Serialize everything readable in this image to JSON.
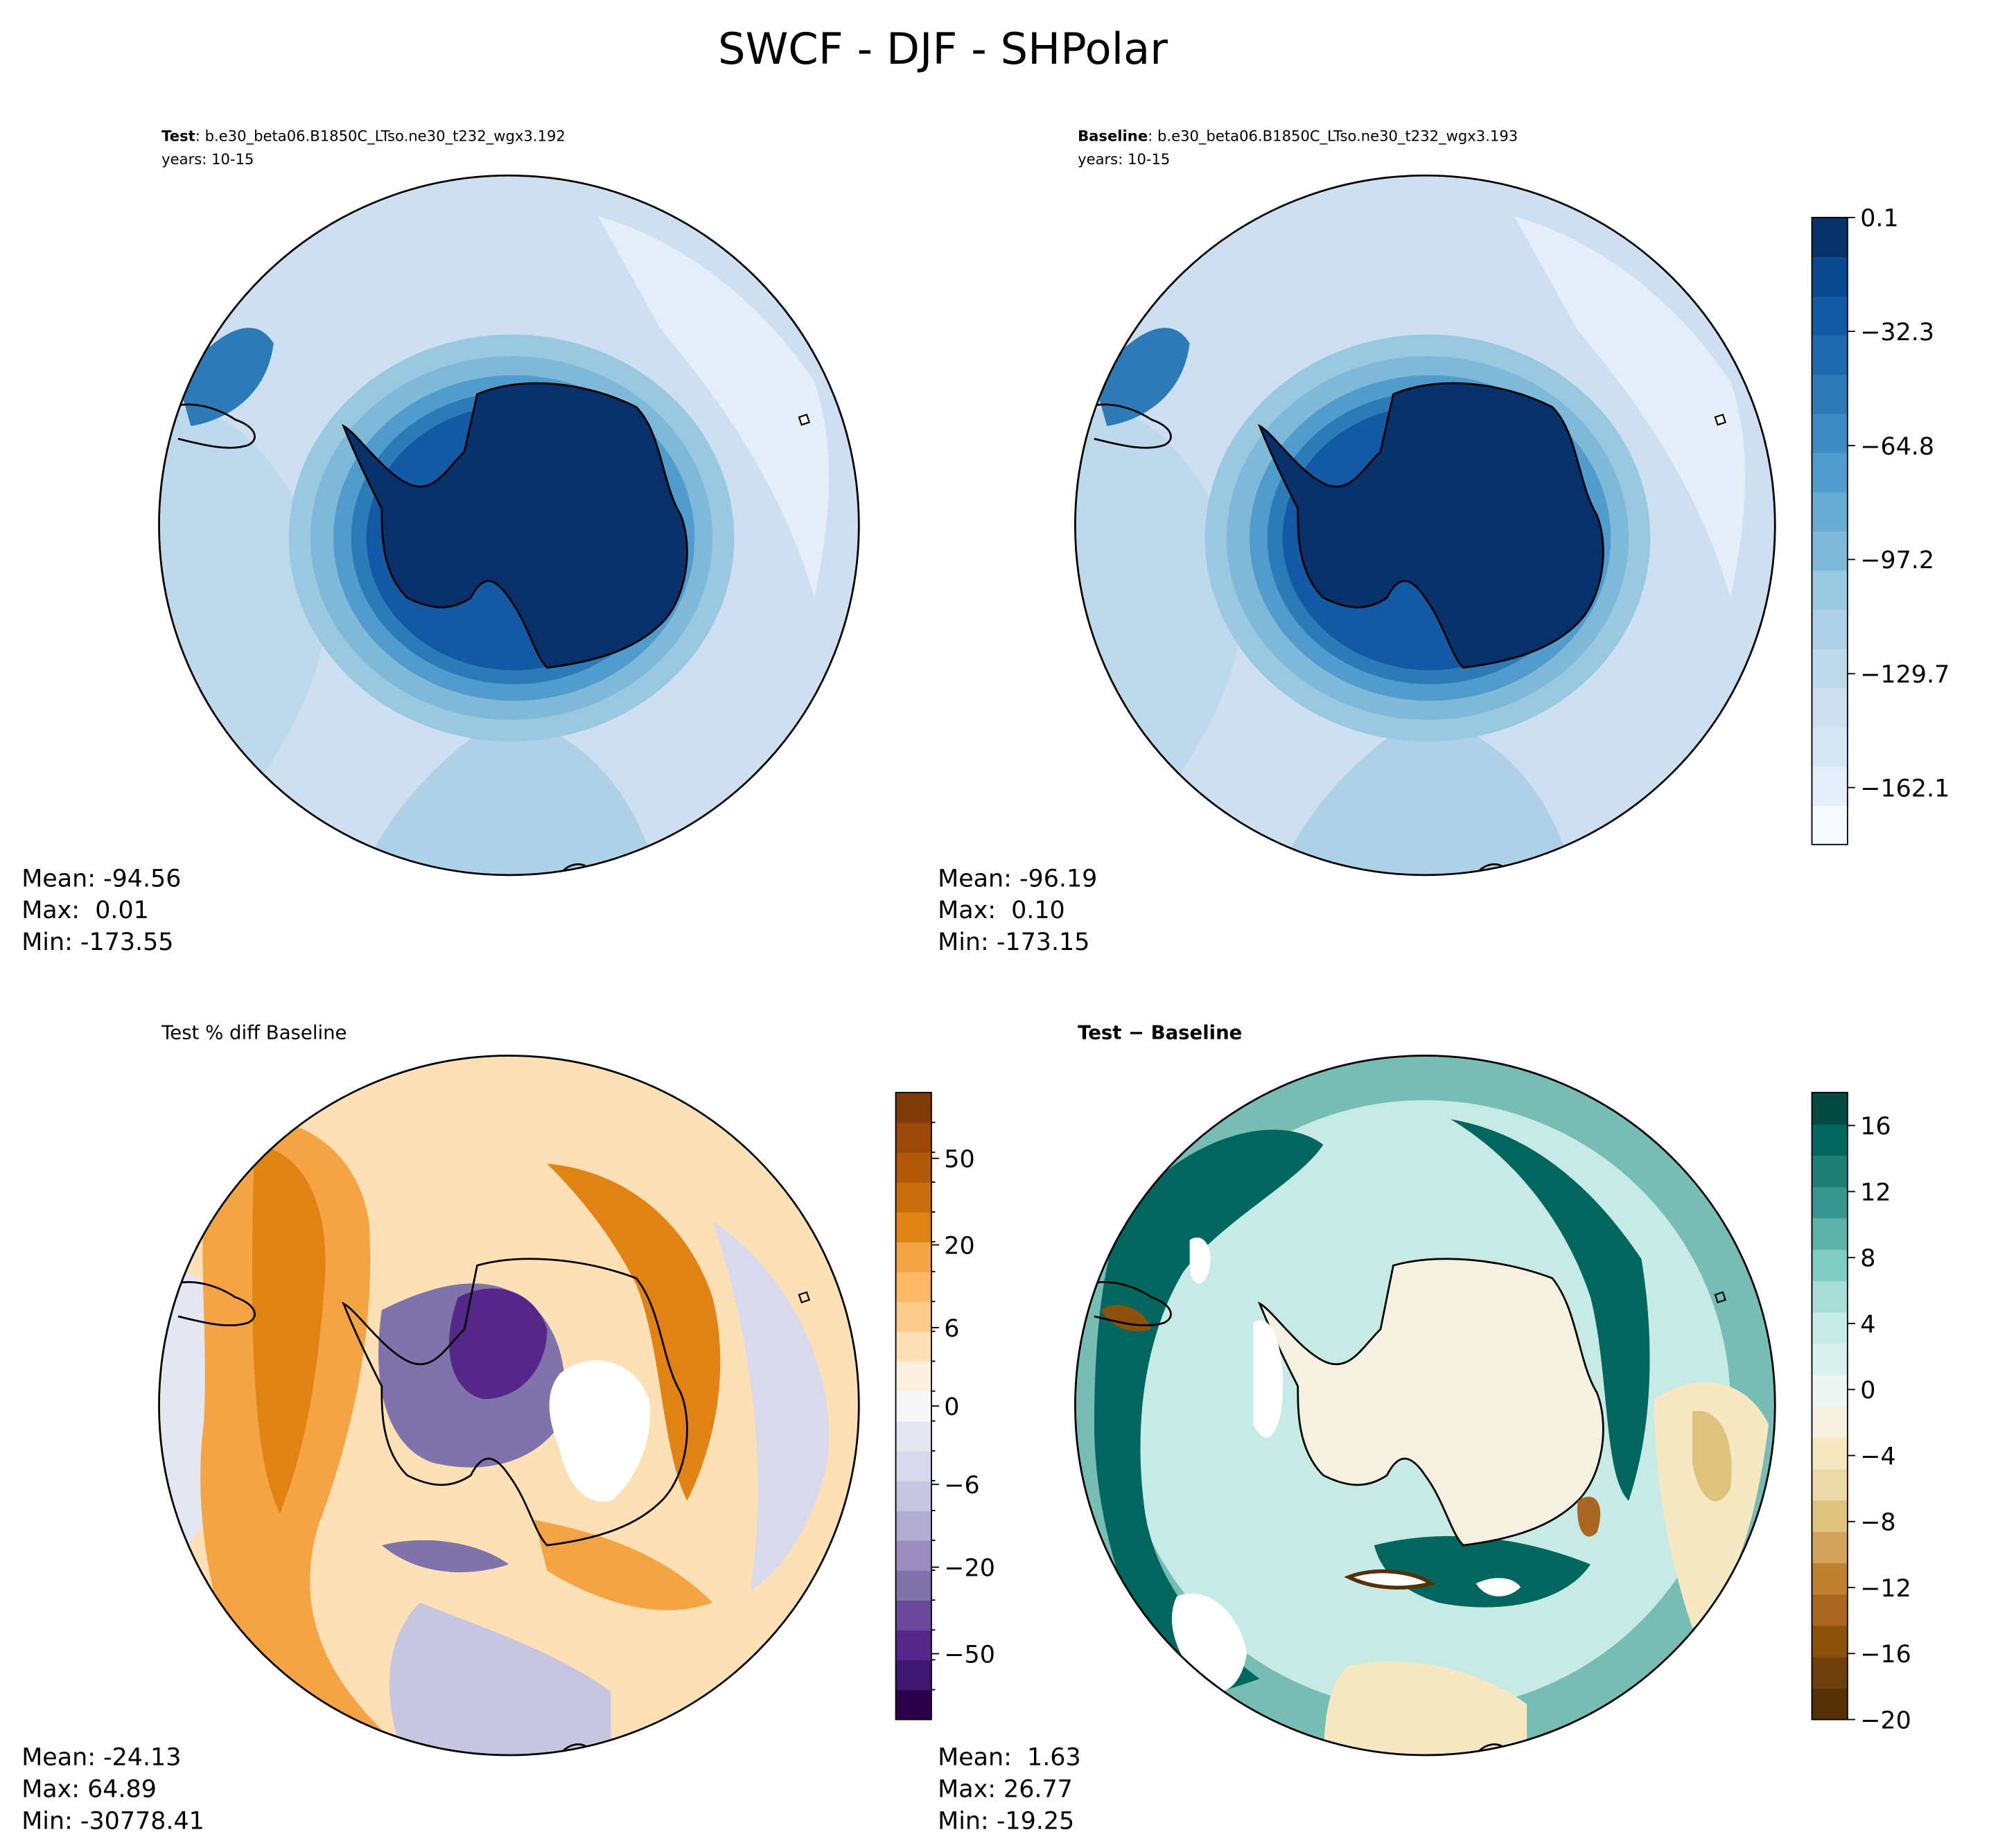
{
  "figure": {
    "title": "SWCF - DJF - SHPolar"
  },
  "chart_data": [
    {
      "type": "heatmap",
      "panel": "test",
      "projection": "south-polar stereographic",
      "title_bold": "Test",
      "title_rest": ": b.e30_beta06.B1850C_LTso.ne30_t232_wgx3.192",
      "subtitle": "years: 10-15",
      "colormap": "Blues_r",
      "stats": {
        "mean": "Mean: -94.56",
        "max": "Max:  0.01",
        "min": "Min: -173.55"
      }
    },
    {
      "type": "heatmap",
      "panel": "baseline",
      "projection": "south-polar stereographic",
      "title_bold": "Baseline",
      "title_rest": ": b.e30_beta06.B1850C_LTso.ne30_t232_wgx3.193",
      "subtitle": "years: 10-15",
      "colormap": "Blues_r",
      "stats": {
        "mean": "Mean: -96.19",
        "max": "Max:  0.10",
        "min": "Min: -173.15"
      },
      "colorbar": {
        "range": [
          -178.3,
          0.1
        ],
        "levels": 16,
        "tick_values": [
          0.1,
          -32.3,
          -64.8,
          -97.2,
          -129.7,
          -162.1
        ],
        "tick_labels": [
          "0.1",
          "−32.3",
          "−64.8",
          "−97.2",
          "−129.7",
          "−162.1"
        ],
        "colors": [
          "#f7fbff",
          "#e3eef9",
          "#d7e6f5",
          "#cddff1",
          "#bed8ec",
          "#afd1e7",
          "#9ac8e0",
          "#7fb9da",
          "#68acd5",
          "#519ccc",
          "#3d8dc4",
          "#2c7bb6",
          "#1f69af",
          "#1459a3",
          "#0a4a90",
          "#08306b"
        ]
      }
    },
    {
      "type": "heatmap",
      "panel": "percent-diff",
      "projection": "south-polar stereographic",
      "title": "Test % diff Baseline",
      "colormap": "PuOr_r",
      "stats": {
        "mean": "Mean: -24.13",
        "max": "Max: 64.89",
        "min": "Min: -30778.41"
      },
      "colorbar": {
        "range": [
          -100,
          100
        ],
        "tick_labels": [
          "50",
          "20",
          "6",
          "0",
          "−6",
          "−20",
          "−50"
        ],
        "colors": [
          "#2d004b",
          "#3e1870",
          "#542788",
          "#6a4b9b",
          "#8073ac",
          "#9a8cbd",
          "#b2abd2",
          "#c8c5e1",
          "#d8daeb",
          "#e6e6f2",
          "#f7f7f7",
          "#fbf0e0",
          "#fee0b6",
          "#fdcb8d",
          "#fdb863",
          "#f4a444",
          "#e08214",
          "#c96d0e",
          "#b35806",
          "#9a4a08",
          "#7f3b08"
        ]
      }
    },
    {
      "type": "heatmap",
      "panel": "difference",
      "projection": "south-polar stereographic",
      "title_bold": "Test − Baseline",
      "colormap": "BrBG",
      "stats": {
        "mean": "Mean:  1.63",
        "max": "Max: 26.77",
        "min": "Min: -19.25"
      },
      "colorbar": {
        "range": [
          -20,
          18
        ],
        "tick_values": [
          16,
          12,
          8,
          4,
          0,
          -4,
          -8,
          -12,
          -16,
          -20
        ],
        "tick_labels": [
          "16",
          "12",
          "8",
          "4",
          "0",
          "−4",
          "−8",
          "−12",
          "−16",
          "−20"
        ],
        "colors": [
          "#543005",
          "#6e410c",
          "#8c510a",
          "#a86620",
          "#bf812d",
          "#d2a35a",
          "#dfc27d",
          "#eedaa8",
          "#f6e8c3",
          "#f5f0e0",
          "#eef5f3",
          "#d9f0ec",
          "#c7eae5",
          "#a7ddd4",
          "#80cdc1",
          "#5fb2a8",
          "#35978f",
          "#1e7f77",
          "#01665e",
          "#024b43"
        ]
      }
    }
  ]
}
